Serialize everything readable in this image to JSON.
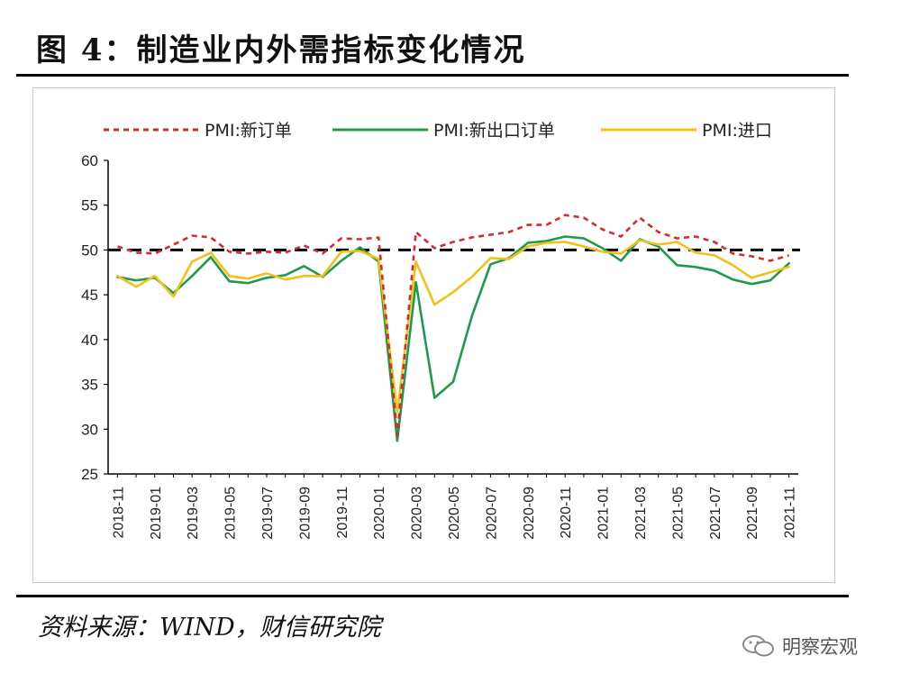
{
  "figure": {
    "title": "图 4：制造业内外需指标变化情况",
    "source": "资料来源：WIND，财信研究院",
    "watermark": "明察宏观"
  },
  "chart_data": {
    "type": "line",
    "title": "",
    "xlabel": "",
    "ylabel": "",
    "ylim": [
      25,
      60
    ],
    "yticks": [
      25,
      30,
      35,
      40,
      45,
      50,
      55,
      60
    ],
    "reference_line": 50,
    "x": [
      "2018-11",
      "2018-12",
      "2019-01",
      "2019-02",
      "2019-03",
      "2019-04",
      "2019-05",
      "2019-06",
      "2019-07",
      "2019-08",
      "2019-09",
      "2019-10",
      "2019-11",
      "2019-12",
      "2020-01",
      "2020-02",
      "2020-03",
      "2020-04",
      "2020-05",
      "2020-06",
      "2020-07",
      "2020-08",
      "2020-09",
      "2020-10",
      "2020-11",
      "2020-12",
      "2021-01",
      "2021-02",
      "2021-03",
      "2021-04",
      "2021-05",
      "2021-06",
      "2021-07",
      "2021-08",
      "2021-09",
      "2021-10",
      "2021-11"
    ],
    "xticklabels": [
      "2018-11",
      "2019-01",
      "2019-03",
      "2019-05",
      "2019-07",
      "2019-09",
      "2019-11",
      "2020-01",
      "2020-03",
      "2020-05",
      "2020-07",
      "2020-09",
      "2020-11",
      "2021-01",
      "2021-03",
      "2021-05",
      "2021-07",
      "2021-09",
      "2021-11"
    ],
    "series": [
      {
        "name": "PMI:新订单",
        "color": "#d62b2b",
        "style": "dashed",
        "values": [
          50.4,
          49.7,
          49.6,
          50.6,
          51.6,
          51.4,
          49.8,
          49.6,
          49.8,
          49.7,
          50.5,
          49.6,
          51.3,
          51.2,
          51.4,
          29.3,
          52.0,
          50.2,
          50.9,
          51.4,
          51.7,
          52.0,
          52.8,
          52.8,
          53.9,
          53.6,
          52.3,
          51.5,
          53.6,
          52.0,
          51.3,
          51.5,
          50.9,
          49.6,
          49.3,
          48.8,
          49.4
        ]
      },
      {
        "name": "PMI:新出口订单",
        "color": "#1f9a4d",
        "style": "solid",
        "values": [
          47.0,
          46.6,
          46.9,
          45.2,
          47.1,
          49.2,
          46.5,
          46.3,
          46.9,
          47.2,
          48.2,
          47.0,
          48.8,
          50.3,
          48.7,
          28.7,
          46.4,
          33.5,
          35.3,
          42.6,
          48.4,
          49.1,
          50.8,
          51.0,
          51.5,
          51.3,
          50.2,
          48.8,
          51.2,
          50.4,
          48.3,
          48.1,
          47.7,
          46.7,
          46.2,
          46.6,
          48.5
        ]
      },
      {
        "name": "PMI:进口",
        "color": "#f2c118",
        "style": "solid",
        "values": [
          47.1,
          45.9,
          47.1,
          44.8,
          48.7,
          49.7,
          47.1,
          46.8,
          47.4,
          46.7,
          47.1,
          47.1,
          49.8,
          49.9,
          49.0,
          31.9,
          48.7,
          43.9,
          45.3,
          47.0,
          49.1,
          49.0,
          50.4,
          50.8,
          50.9,
          50.4,
          49.8,
          49.6,
          51.1,
          50.6,
          50.9,
          49.7,
          49.4,
          48.3,
          46.9,
          47.5,
          48.1
        ]
      }
    ],
    "legend_position": "top"
  }
}
